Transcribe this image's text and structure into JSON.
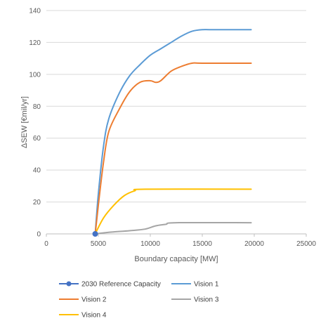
{
  "chart_data": {
    "type": "line",
    "title": "",
    "xlabel": "Boundary capacity [MW]",
    "ylabel": "ΔSEW [€mil/yr]",
    "xlim": [
      0,
      25000
    ],
    "ylim": [
      0,
      140
    ],
    "x_ticks": [
      0,
      5000,
      10000,
      15000,
      20000,
      25000
    ],
    "y_ticks": [
      0,
      20,
      40,
      60,
      80,
      100,
      120,
      140
    ],
    "x_tick_labels": [
      "0",
      "5000",
      "10000",
      "15000",
      "20000",
      "25000"
    ],
    "y_tick_labels": [
      "0",
      "20",
      "40",
      "60",
      "80",
      "100",
      "120",
      "140"
    ],
    "grid": "horizontal",
    "legend_position": "bottom",
    "series": [
      {
        "name": "2030 Reference Capacity",
        "kind": "marker",
        "color": "#4472C4",
        "points": [
          [
            4700,
            0
          ]
        ]
      },
      {
        "name": "Vision 1",
        "kind": "line",
        "color": "#5B9BD5",
        "points": [
          [
            4700,
            0
          ],
          [
            5000,
            25
          ],
          [
            5500,
            55
          ],
          [
            6000,
            72
          ],
          [
            7000,
            88
          ],
          [
            8000,
            99
          ],
          [
            9000,
            106
          ],
          [
            10000,
            112
          ],
          [
            11000,
            116
          ],
          [
            12000,
            120
          ],
          [
            13000,
            124
          ],
          [
            14000,
            127
          ],
          [
            15000,
            128
          ],
          [
            16000,
            128
          ],
          [
            19700,
            128
          ]
        ]
      },
      {
        "name": "Vision 2",
        "kind": "line",
        "color": "#ED7D31",
        "points": [
          [
            4700,
            0
          ],
          [
            5000,
            18
          ],
          [
            5500,
            45
          ],
          [
            6000,
            64
          ],
          [
            7000,
            78
          ],
          [
            8000,
            89
          ],
          [
            9000,
            95
          ],
          [
            10000,
            96
          ],
          [
            10500,
            95
          ],
          [
            11000,
            96
          ],
          [
            12000,
            102
          ],
          [
            13000,
            105
          ],
          [
            14000,
            107
          ],
          [
            15000,
            107
          ],
          [
            19700,
            107
          ]
        ]
      },
      {
        "name": "Vision 3",
        "kind": "line",
        "color": "#A5A5A5",
        "points": [
          [
            4700,
            0
          ],
          [
            6000,
            1
          ],
          [
            8000,
            2
          ],
          [
            9500,
            3
          ],
          [
            10500,
            5
          ],
          [
            11500,
            6
          ],
          [
            12500,
            7
          ],
          [
            19700,
            7
          ]
        ]
      },
      {
        "name": "Vision 4",
        "kind": "line",
        "color": "#FFC000",
        "points": [
          [
            4700,
            0
          ],
          [
            5500,
            10
          ],
          [
            6500,
            18
          ],
          [
            7500,
            24
          ],
          [
            8500,
            27
          ],
          [
            9500,
            28
          ],
          [
            19700,
            28
          ]
        ]
      }
    ]
  },
  "legend": {
    "items": [
      {
        "label": "2030 Reference Capacity",
        "color": "#4472C4",
        "kind": "marker"
      },
      {
        "label": "Vision 1",
        "color": "#5B9BD5",
        "kind": "line"
      },
      {
        "label": "Vision 2",
        "color": "#ED7D31",
        "kind": "line"
      },
      {
        "label": "Vision 3",
        "color": "#A5A5A5",
        "kind": "line"
      },
      {
        "label": "Vision 4",
        "color": "#FFC000",
        "kind": "line"
      }
    ]
  }
}
